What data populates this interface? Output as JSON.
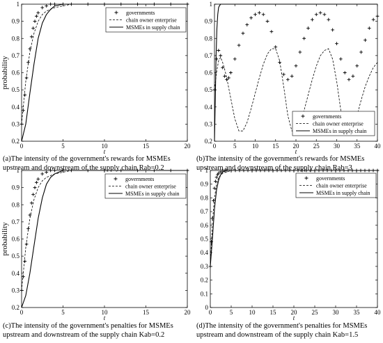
{
  "chart_data": [
    {
      "type": "line",
      "ylabel": "probability",
      "xlabel": "t",
      "xlim": [
        0,
        20
      ],
      "ylim": [
        0.2,
        1.0
      ],
      "xticks": [
        0,
        5,
        10,
        15,
        20
      ],
      "yticks": [
        0.2,
        0.3,
        0.4,
        0.5,
        0.6,
        0.7,
        0.8,
        0.9,
        1
      ],
      "legend": "top-right",
      "caption_line1": "(a)The intensity of the government's rewards for MSMEs",
      "caption_line2": "upstream and downstream of the supply chain Rab=0.2",
      "series": [
        {
          "name": "governments",
          "style": "markers",
          "x": [
            0,
            0.2,
            0.4,
            0.6,
            0.8,
            1,
            1.2,
            1.4,
            1.6,
            1.8,
            2,
            2.5,
            3,
            3.5,
            4,
            5,
            6,
            8,
            10,
            12,
            14,
            16,
            18,
            20
          ],
          "values": [
            0.3,
            0.38,
            0.47,
            0.57,
            0.66,
            0.74,
            0.81,
            0.86,
            0.9,
            0.93,
            0.95,
            0.98,
            0.99,
            1,
            1,
            1,
            1,
            1,
            1,
            1,
            1,
            1,
            1,
            1
          ]
        },
        {
          "name": "chain owner enterprise",
          "style": "dashed",
          "x": [
            0,
            0.5,
            1,
            1.5,
            2,
            2.5,
            3,
            4,
            5,
            6,
            8,
            10,
            15,
            20
          ],
          "values": [
            0.3,
            0.55,
            0.72,
            0.83,
            0.9,
            0.94,
            0.96,
            0.98,
            0.99,
            1,
            1,
            1,
            1,
            1
          ]
        },
        {
          "name": "MSMEs  in supply chain",
          "style": "solid",
          "x": [
            0,
            0.5,
            1,
            1.5,
            2,
            2.5,
            3,
            3.5,
            4,
            5,
            6,
            8,
            10,
            15,
            20
          ],
          "values": [
            0.2,
            0.3,
            0.48,
            0.65,
            0.8,
            0.89,
            0.94,
            0.97,
            0.99,
            1,
            1,
            1,
            1,
            1,
            1
          ]
        }
      ]
    },
    {
      "type": "line",
      "ylabel": "",
      "xlabel": "t",
      "xlim": [
        0,
        40
      ],
      "ylim": [
        0.2,
        1.0
      ],
      "xticks": [
        0,
        5,
        10,
        15,
        20,
        25,
        30,
        35,
        40
      ],
      "yticks": [
        0.2,
        0.3,
        0.4,
        0.5,
        0.6,
        0.7,
        0.8,
        0.9,
        1
      ],
      "legend": "bottom-right",
      "caption_line1": "(b)The intensity of the government's rewards for MSMEs",
      "caption_line2": "upstream and downstream of the supply chain Rab=3",
      "series": [
        {
          "name": "governments",
          "style": "markers",
          "x": [
            0,
            0.5,
            1,
            1.5,
            2,
            2.5,
            3,
            3.5,
            4,
            5,
            6,
            7,
            8,
            9,
            10,
            11,
            12,
            13,
            14,
            15,
            16,
            17,
            18,
            19,
            20,
            21,
            22,
            23,
            24,
            25,
            26,
            27,
            28,
            29,
            30,
            31,
            32,
            33,
            34,
            35,
            36,
            37,
            38,
            39,
            40
          ],
          "values": [
            0.5,
            0.68,
            0.73,
            0.7,
            0.63,
            0.58,
            0.56,
            0.57,
            0.6,
            0.68,
            0.76,
            0.83,
            0.88,
            0.92,
            0.94,
            0.95,
            0.94,
            0.9,
            0.84,
            0.75,
            0.66,
            0.59,
            0.56,
            0.58,
            0.64,
            0.72,
            0.8,
            0.86,
            0.91,
            0.94,
            0.95,
            0.94,
            0.91,
            0.85,
            0.77,
            0.68,
            0.6,
            0.56,
            0.58,
            0.64,
            0.72,
            0.79,
            0.86,
            0.91,
            0.93
          ]
        },
        {
          "name": "chain owner enterprise",
          "style": "dashed",
          "x": [
            0,
            0.5,
            1,
            1.5,
            2,
            2.5,
            3,
            4,
            5,
            6,
            7,
            8,
            9,
            10,
            11,
            12,
            13,
            14,
            15,
            16,
            17,
            18,
            19,
            20,
            21,
            22,
            23,
            24,
            25,
            26,
            27,
            28,
            29,
            30,
            31,
            32,
            33,
            34,
            35,
            36,
            37,
            38,
            39,
            40
          ],
          "values": [
            0.5,
            0.6,
            0.67,
            0.69,
            0.66,
            0.62,
            0.57,
            0.45,
            0.33,
            0.26,
            0.26,
            0.31,
            0.39,
            0.48,
            0.57,
            0.65,
            0.71,
            0.74,
            0.74,
            0.67,
            0.52,
            0.35,
            0.26,
            0.26,
            0.3,
            0.38,
            0.47,
            0.56,
            0.64,
            0.7,
            0.73,
            0.74,
            0.68,
            0.55,
            0.38,
            0.27,
            0.25,
            0.28,
            0.35,
            0.44,
            0.52,
            0.58,
            0.63,
            0.66
          ]
        },
        {
          "name": "MSMEs  in supply chain",
          "style": "solid",
          "x": [
            0,
            0.2,
            0.4,
            0.6,
            0.8,
            1,
            1.2,
            1.5,
            2,
            3,
            5,
            10,
            20,
            30,
            40
          ],
          "values": [
            0.2,
            0.45,
            0.7,
            0.86,
            0.94,
            0.98,
            0.99,
            1,
            1,
            1,
            1,
            1,
            1,
            1,
            1
          ]
        }
      ]
    },
    {
      "type": "line",
      "ylabel": "probability",
      "xlabel": "t",
      "xlim": [
        0,
        20
      ],
      "ylim": [
        0.2,
        1.0
      ],
      "xticks": [
        0,
        5,
        10,
        15,
        20
      ],
      "yticks": [
        0.2,
        0.3,
        0.4,
        0.5,
        0.6,
        0.7,
        0.8,
        0.9,
        1
      ],
      "legend": "top-right",
      "caption_line1": "(c)The intensity of the government's penalties for MSMEs",
      "caption_line2": "upstream and downstream of the supply chain Kab=0.2",
      "series": [
        {
          "name": "governments",
          "style": "markers",
          "x": [
            0,
            0.2,
            0.4,
            0.6,
            0.8,
            1,
            1.2,
            1.4,
            1.6,
            1.8,
            2,
            2.5,
            3,
            3.5,
            4,
            5,
            6,
            8,
            10,
            12,
            14,
            16,
            18,
            20
          ],
          "values": [
            0.3,
            0.38,
            0.47,
            0.57,
            0.66,
            0.74,
            0.81,
            0.86,
            0.9,
            0.93,
            0.95,
            0.98,
            0.99,
            1,
            1,
            1,
            1,
            1,
            1,
            1,
            1,
            1,
            1,
            1
          ]
        },
        {
          "name": "chain owner enterprise",
          "style": "dashed",
          "x": [
            0,
            0.5,
            1,
            1.5,
            2,
            2.5,
            3,
            4,
            5,
            6,
            8,
            10,
            15,
            20
          ],
          "values": [
            0.3,
            0.55,
            0.72,
            0.83,
            0.9,
            0.94,
            0.96,
            0.98,
            0.99,
            1,
            1,
            1,
            1,
            1
          ]
        },
        {
          "name": "MSMEs  in supply chain",
          "style": "solid",
          "x": [
            0,
            0.5,
            1,
            1.5,
            2,
            2.5,
            3,
            3.5,
            4,
            5,
            6,
            8,
            10,
            15,
            20
          ],
          "values": [
            0.2,
            0.27,
            0.4,
            0.56,
            0.72,
            0.84,
            0.92,
            0.96,
            0.98,
            1,
            1,
            1,
            1,
            1,
            1
          ]
        }
      ]
    },
    {
      "type": "line",
      "ylabel": "",
      "xlabel": "t",
      "xlim": [
        0,
        40
      ],
      "ylim": [
        0,
        1.0
      ],
      "xticks": [
        0,
        5,
        10,
        15,
        20,
        25,
        30,
        35,
        40
      ],
      "yticks": [
        0,
        0.1,
        0.2,
        0.3,
        0.4,
        0.5,
        0.6,
        0.7,
        0.8,
        0.9,
        1
      ],
      "legend": "top-right",
      "caption_line1": "(d)The intensity of the government's penalties for MSMEs",
      "caption_line2": "upstream and downstream of the supply chain Kab=1.5",
      "series": [
        {
          "name": "governments",
          "style": "markers",
          "x": [
            0,
            0.25,
            0.5,
            0.75,
            1,
            1.25,
            1.5,
            1.75,
            2,
            2.5,
            3,
            3.5,
            4,
            5,
            6,
            7,
            8,
            9,
            10,
            11,
            12,
            13,
            14,
            15,
            16,
            17,
            18,
            19,
            20,
            21,
            22,
            23,
            24,
            25,
            26,
            27,
            28,
            29,
            30,
            31,
            32,
            33,
            34,
            35,
            36,
            37,
            38,
            39,
            40
          ],
          "values": [
            0.3,
            0.48,
            0.65,
            0.78,
            0.87,
            0.92,
            0.95,
            0.97,
            0.98,
            0.99,
            1,
            1,
            1,
            1,
            1,
            1,
            1,
            1,
            1,
            1,
            1,
            1,
            1,
            1,
            1,
            1,
            1,
            1,
            1,
            1,
            1,
            1,
            1,
            1,
            1,
            1,
            1,
            1,
            1,
            1,
            1,
            1,
            1,
            1,
            1,
            1,
            1,
            1,
            1
          ]
        },
        {
          "name": "chain owner enterprise",
          "style": "dashed",
          "x": [
            0,
            0.5,
            1,
            1.5,
            2,
            3,
            4,
            5,
            6,
            8,
            10,
            20,
            30,
            40
          ],
          "values": [
            0.3,
            0.62,
            0.8,
            0.9,
            0.95,
            0.98,
            0.99,
            1,
            1,
            1,
            1,
            1,
            1,
            1
          ]
        },
        {
          "name": "MSMEs  in supply chain",
          "style": "solid",
          "x": [
            0,
            0.5,
            1,
            1.5,
            2,
            2.5,
            3,
            4,
            5,
            10,
            20,
            30,
            40
          ],
          "values": [
            0.3,
            0.5,
            0.72,
            0.86,
            0.93,
            0.97,
            0.99,
            1,
            1,
            1,
            1,
            1,
            1
          ]
        }
      ]
    }
  ]
}
